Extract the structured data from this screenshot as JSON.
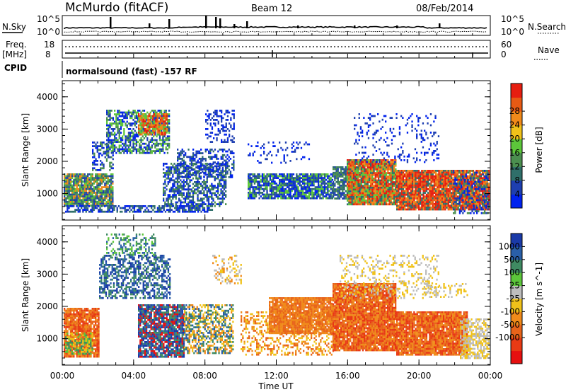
{
  "header": {
    "station": "McMurdo (fitACF)",
    "beam": "Beam 12",
    "date": "08/Feb/2014"
  },
  "panels": {
    "nsky_label": "N.Sky",
    "nsearch_label": "N.Search",
    "noise_ticks_left": [
      "10^5",
      "10^0"
    ],
    "noise_ticks_right": [
      "10^5",
      "10^0"
    ],
    "freq_label_1": "Freq.",
    "freq_label_2": "[MHz]",
    "freq_ticks": [
      "18",
      "8"
    ],
    "nave_label": "Nave",
    "nave_ticks": [
      "60",
      "0"
    ],
    "cpid_label": "CPID",
    "cpid_text": "normalsound (fast) -157 RF"
  },
  "colors": {
    "power_scale": [
      "#0022ee",
      "#1e3fb0",
      "#2f6f6a",
      "#4b8f4f",
      "#5cc63a",
      "#f0c21a",
      "#f08a1a",
      "#e85a14",
      "#e61e10"
    ],
    "velocity_scale": [
      "#1a3aa8",
      "#2a5fa8",
      "#3f8a62",
      "#5cc63a",
      "#bdbdbd",
      "#f0c21a",
      "#f08a1a",
      "#e8641a",
      "#e83a14",
      "#e61010"
    ]
  },
  "chart_data": [
    {
      "type": "heatmap",
      "title": "",
      "xlabel": "",
      "ylabel": "Slant Range [km]",
      "x_ticks": [
        "00:00",
        "04:00",
        "08:00",
        "12:00",
        "16:00",
        "20:00",
        "00:00"
      ],
      "y_ticks": [
        1000,
        2000,
        3000,
        4000
      ],
      "ylim": [
        180,
        4500
      ],
      "colorbar_label": "Power [dB]",
      "colorbar_ticks": [
        "4",
        "8",
        "12",
        "16",
        "20",
        "24",
        "28"
      ]
    },
    {
      "type": "heatmap",
      "title": "",
      "xlabel": "Time UT",
      "ylabel": "Slant Range [km]",
      "x_ticks": [
        "00:00",
        "04:00",
        "08:00",
        "12:00",
        "16:00",
        "20:00",
        "00:00"
      ],
      "y_ticks": [
        1000,
        2000,
        3000,
        4000
      ],
      "ylim": [
        180,
        4500
      ],
      "colorbar_label": "Velocity [m s^-1]",
      "colorbar_ticks": [
        "1000",
        "500",
        "100",
        "25",
        "-25",
        "-100",
        "-500",
        "-1000"
      ]
    }
  ]
}
